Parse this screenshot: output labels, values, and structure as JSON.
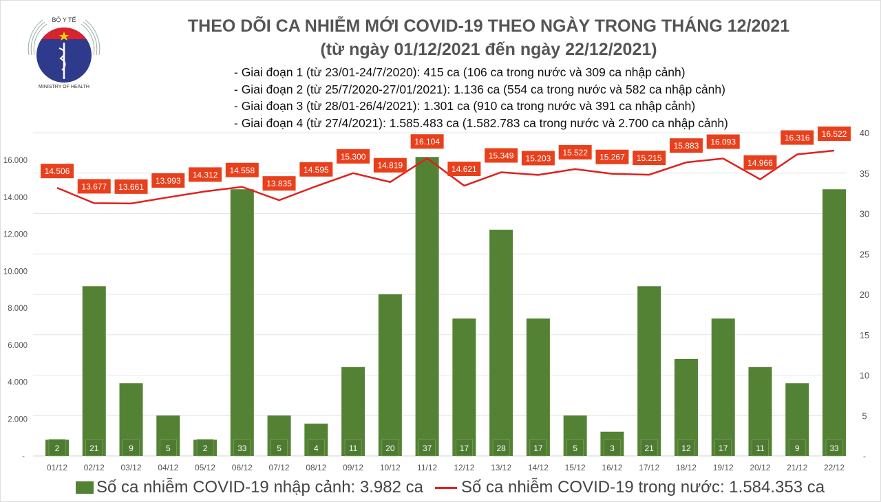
{
  "logo": {
    "top_text": "BỘ Y TẾ",
    "bottom_text": "MINISTRY OF HEALTH"
  },
  "title_line1": "THEO DÕI CA NHIỄM MỚI COVID-19 THEO NGÀY TRONG THÁNG 12/2021",
  "title_line2": "(từ ngày 01/12/2021 đến ngày 22/12/2021)",
  "notes": [
    "- Giai đoạn 1 (từ 23/01-24/7/2020): 415 ca (106 ca trong nước và 309 ca nhập cảnh)",
    "- Giai đoạn 2 (từ 25/7/2020-27/01/2021): 1.136 ca (554 ca trong nước và 582 ca nhập cảnh)",
    "- Giai đoạn 3 (từ 28/01-26/4/2021): 1.301 ca (910 ca trong nước và 391 ca nhập cảnh)",
    "- Giai đoạn 4 (từ 27/4/2021): 1.585.483 ca (1.582.783 ca trong nước và 2.700 ca nhập cảnh)"
  ],
  "chart_data": {
    "type": "bar+line",
    "categories": [
      "01/12",
      "02/12",
      "03/12",
      "04/12",
      "05/12",
      "06/12",
      "07/12",
      "08/12",
      "09/12",
      "10/12",
      "11/12",
      "12/12",
      "13/12",
      "14/12",
      "15/12",
      "16/12",
      "17/12",
      "18/12",
      "19/12",
      "20/12",
      "21/12",
      "22/12"
    ],
    "series": [
      {
        "name": "Số ca nhiễm COVID-19 nhập cảnh: 3.982 ca",
        "type": "bar",
        "axis": "right",
        "color": "#548235",
        "values": [
          2,
          21,
          9,
          5,
          2,
          33,
          5,
          4,
          11,
          20,
          37,
          17,
          28,
          17,
          5,
          3,
          21,
          12,
          17,
          11,
          9,
          33
        ]
      },
      {
        "name": "Số ca nhiễm COVID-19 trong nước: 1.584.353 ca",
        "type": "line",
        "axis": "left",
        "color": "#e02020",
        "values": [
          14506,
          13677,
          13661,
          13993,
          14312,
          14558,
          13835,
          14595,
          15300,
          14819,
          16104,
          14621,
          15349,
          15203,
          15522,
          15267,
          15215,
          15883,
          16093,
          14966,
          16316,
          16522
        ]
      }
    ],
    "left_axis": {
      "ylim": [
        0,
        16000
      ],
      "ticks": [
        "-",
        "2.000",
        "4.000",
        "6.000",
        "8.000",
        "10.000",
        "12.000",
        "14.000",
        "16.000"
      ]
    },
    "right_axis": {
      "ylim": [
        0,
        40
      ],
      "ticks": [
        "-",
        "5",
        "10",
        "15",
        "20",
        "25",
        "30",
        "35",
        "40"
      ]
    },
    "grid": true,
    "legend_position": "bottom"
  }
}
